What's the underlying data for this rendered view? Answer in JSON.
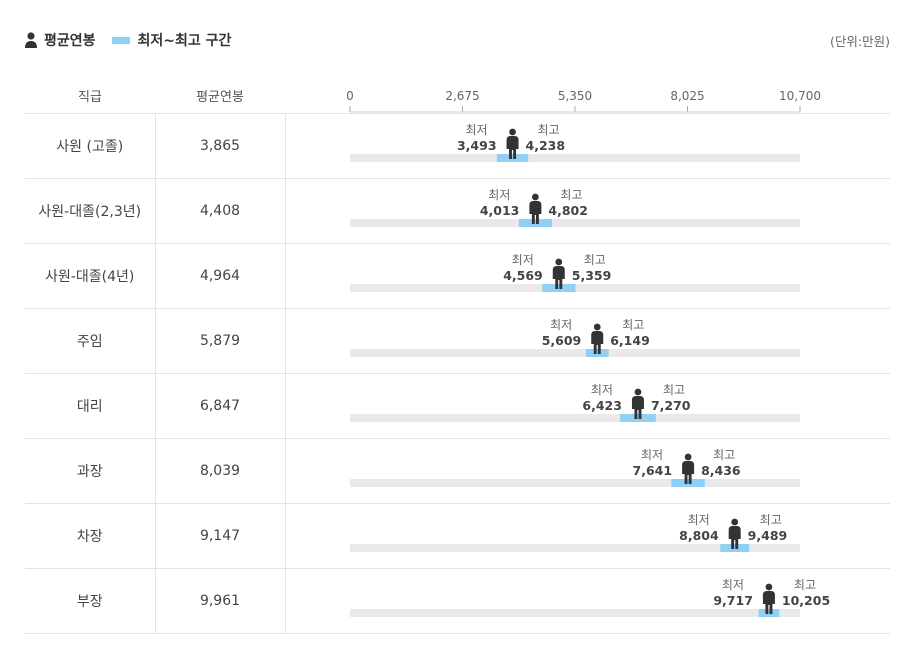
{
  "legend": {
    "avg_label": "평균연봉",
    "range_label": "최저~최고 구간"
  },
  "unit_label": "(단위:만원)",
  "table_headers": {
    "rank": "직급",
    "avg": "평균연봉"
  },
  "marker_labels": {
    "min": "최저",
    "max": "최고"
  },
  "colors": {
    "range": "#8fd0f4",
    "track": "#e9e9e9",
    "person": "#333333"
  },
  "chart_data": {
    "type": "range",
    "xlim": [
      0,
      10700
    ],
    "ticks": [
      "0",
      "2,675",
      "5,350",
      "8,025",
      "10,700"
    ],
    "tick_values": [
      0,
      2675,
      5350,
      8025,
      10700
    ],
    "rows": [
      {
        "rank": "사원 (고졸)",
        "avg": 3865,
        "avg_label": "3,865",
        "min": 3493,
        "min_label": "3,493",
        "max": 4238,
        "max_label": "4,238"
      },
      {
        "rank": "사원-대졸(2,3년)",
        "avg": 4408,
        "avg_label": "4,408",
        "min": 4013,
        "min_label": "4,013",
        "max": 4802,
        "max_label": "4,802"
      },
      {
        "rank": "사원-대졸(4년)",
        "avg": 4964,
        "avg_label": "4,964",
        "min": 4569,
        "min_label": "4,569",
        "max": 5359,
        "max_label": "5,359"
      },
      {
        "rank": "주임",
        "avg": 5879,
        "avg_label": "5,879",
        "min": 5609,
        "min_label": "5,609",
        "max": 6149,
        "max_label": "6,149"
      },
      {
        "rank": "대리",
        "avg": 6847,
        "avg_label": "6,847",
        "min": 6423,
        "min_label": "6,423",
        "max": 7270,
        "max_label": "7,270"
      },
      {
        "rank": "과장",
        "avg": 8039,
        "avg_label": "8,039",
        "min": 7641,
        "min_label": "7,641",
        "max": 8436,
        "max_label": "8,436"
      },
      {
        "rank": "차장",
        "avg": 9147,
        "avg_label": "9,147",
        "min": 8804,
        "min_label": "8,804",
        "max": 9489,
        "max_label": "9,489"
      },
      {
        "rank": "부장",
        "avg": 9961,
        "avg_label": "9,961",
        "min": 9717,
        "min_label": "9,717",
        "max": 10205,
        "max_label": "10,205"
      }
    ]
  }
}
